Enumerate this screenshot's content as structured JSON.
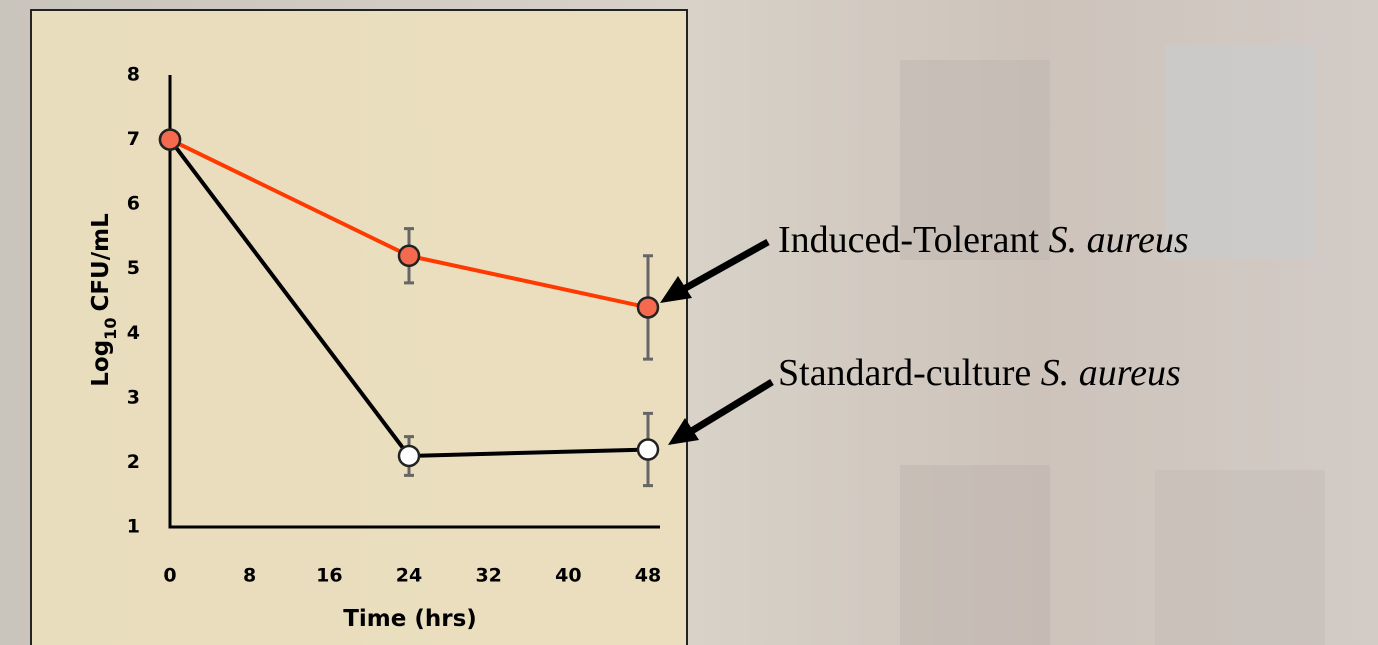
{
  "chart_data": {
    "type": "line",
    "xlabel": "Time (hrs)",
    "ylabel": {
      "base": "Log",
      "subscript": "10",
      "rest": "CFU/mL"
    },
    "x": [
      0,
      24,
      48
    ],
    "xlim": [
      0,
      48
    ],
    "xticks": [
      0,
      8,
      16,
      24,
      32,
      40,
      48
    ],
    "ylim": [
      1,
      8
    ],
    "yticks": [
      1,
      2,
      3,
      4,
      5,
      6,
      7,
      8
    ],
    "series": [
      {
        "label": "Induced-Tolerant",
        "label_italic": "S. aureus",
        "color": "#ff3a00",
        "marker_fill": "#f56a4e",
        "values": [
          7,
          5.2,
          4.4
        ],
        "errors": [
          null,
          0.42,
          0.8
        ]
      },
      {
        "label": "Standard-culture",
        "label_italic": "S. aureus",
        "color": "#000000",
        "marker_fill": "#ffffff",
        "values": [
          7,
          2.1,
          2.2
        ],
        "errors": [
          null,
          0.3,
          0.56
        ]
      }
    ]
  }
}
